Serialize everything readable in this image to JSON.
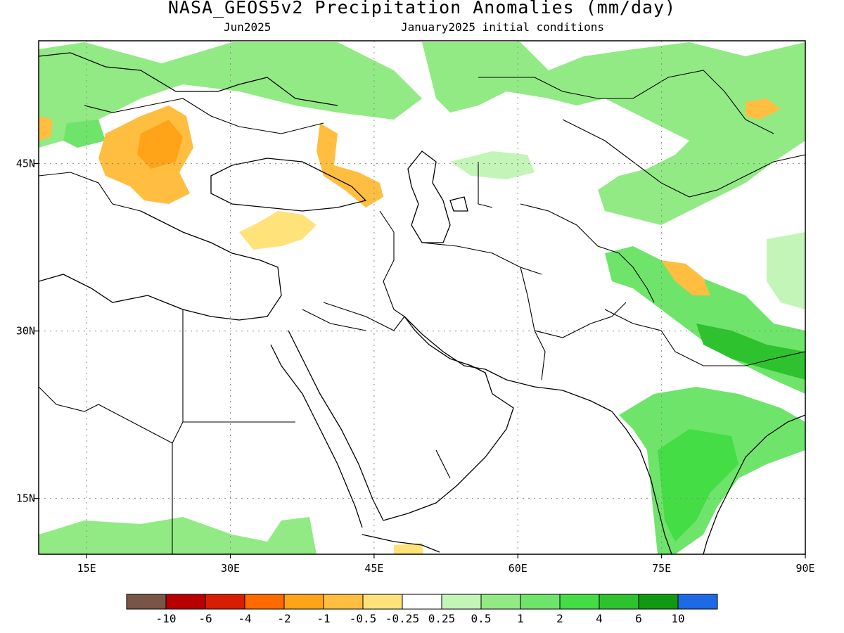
{
  "header": {
    "title": "NASA_GEOS5v2 Precipitation Anomalies (mm/day)",
    "subtitle_left": "Jun2025",
    "subtitle_right": "January2025 initial conditions"
  },
  "map": {
    "lon_range": [
      10,
      90
    ],
    "lat_range": [
      10,
      56
    ],
    "lon_ticks": [
      {
        "value": 15,
        "label": "15E"
      },
      {
        "value": 30,
        "label": "30E"
      },
      {
        "value": 45,
        "label": "45E"
      },
      {
        "value": 60,
        "label": "60E"
      },
      {
        "value": 75,
        "label": "75E"
      },
      {
        "value": 90,
        "label": "90E"
      }
    ],
    "lat_ticks": [
      {
        "value": 45,
        "label": "45N"
      },
      {
        "value": 30,
        "label": "30N"
      },
      {
        "value": 15,
        "label": "15N"
      }
    ],
    "grid": "dotted"
  },
  "colorbar": {
    "colors": [
      "#7a5545",
      "#b80000",
      "#d81e00",
      "#ff6a00",
      "#ffa318",
      "#ffbe40",
      "#ffe27a",
      "#ffffff",
      "#c4f5b8",
      "#92ea84",
      "#6ee46b",
      "#45dd45",
      "#2fc22f",
      "#119a11",
      "#1e6ae6"
    ],
    "labels": [
      "-10",
      "-6",
      "-4",
      "-2",
      "-1",
      "-0.5",
      "-0.25",
      "0.25",
      "0.5",
      "1",
      "2",
      "4",
      "6",
      "10"
    ]
  }
}
